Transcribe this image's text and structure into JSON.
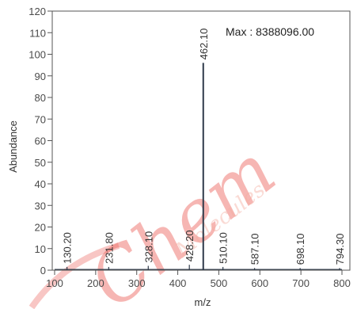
{
  "chart_data": {
    "type": "bar",
    "xlabel": "m/z",
    "ylabel": "Abundance",
    "xlim": [
      100,
      800
    ],
    "ylim": [
      0,
      120
    ],
    "x_ticks": [
      100,
      200,
      300,
      400,
      500,
      600,
      700,
      800
    ],
    "y_ticks": [
      0,
      10,
      20,
      30,
      40,
      50,
      60,
      70,
      80,
      90,
      100,
      110,
      120
    ],
    "annotation": "Max : 8388096.00",
    "peaks": [
      {
        "x": 130.2,
        "y": 1.5,
        "label": "130.20"
      },
      {
        "x": 231.8,
        "y": 1.5,
        "label": "231.80"
      },
      {
        "x": 328.1,
        "y": 2.0,
        "label": "328.10"
      },
      {
        "x": 428.2,
        "y": 2.5,
        "label": "428.20"
      },
      {
        "x": 462.1,
        "y": 96,
        "label": "462.10"
      },
      {
        "x": 510.1,
        "y": 1.5,
        "label": "510.10"
      },
      {
        "x": 587.1,
        "y": 1.0,
        "label": "587.10"
      },
      {
        "x": 698.1,
        "y": 1.0,
        "label": "698.10"
      },
      {
        "x": 794.3,
        "y": 1.0,
        "label": "794.30"
      }
    ],
    "grid": false,
    "colors": {
      "line": "#2e3a4a",
      "axis": "#555555"
    }
  },
  "watermark": {
    "text": "Chem",
    "sub": "Molecules"
  }
}
